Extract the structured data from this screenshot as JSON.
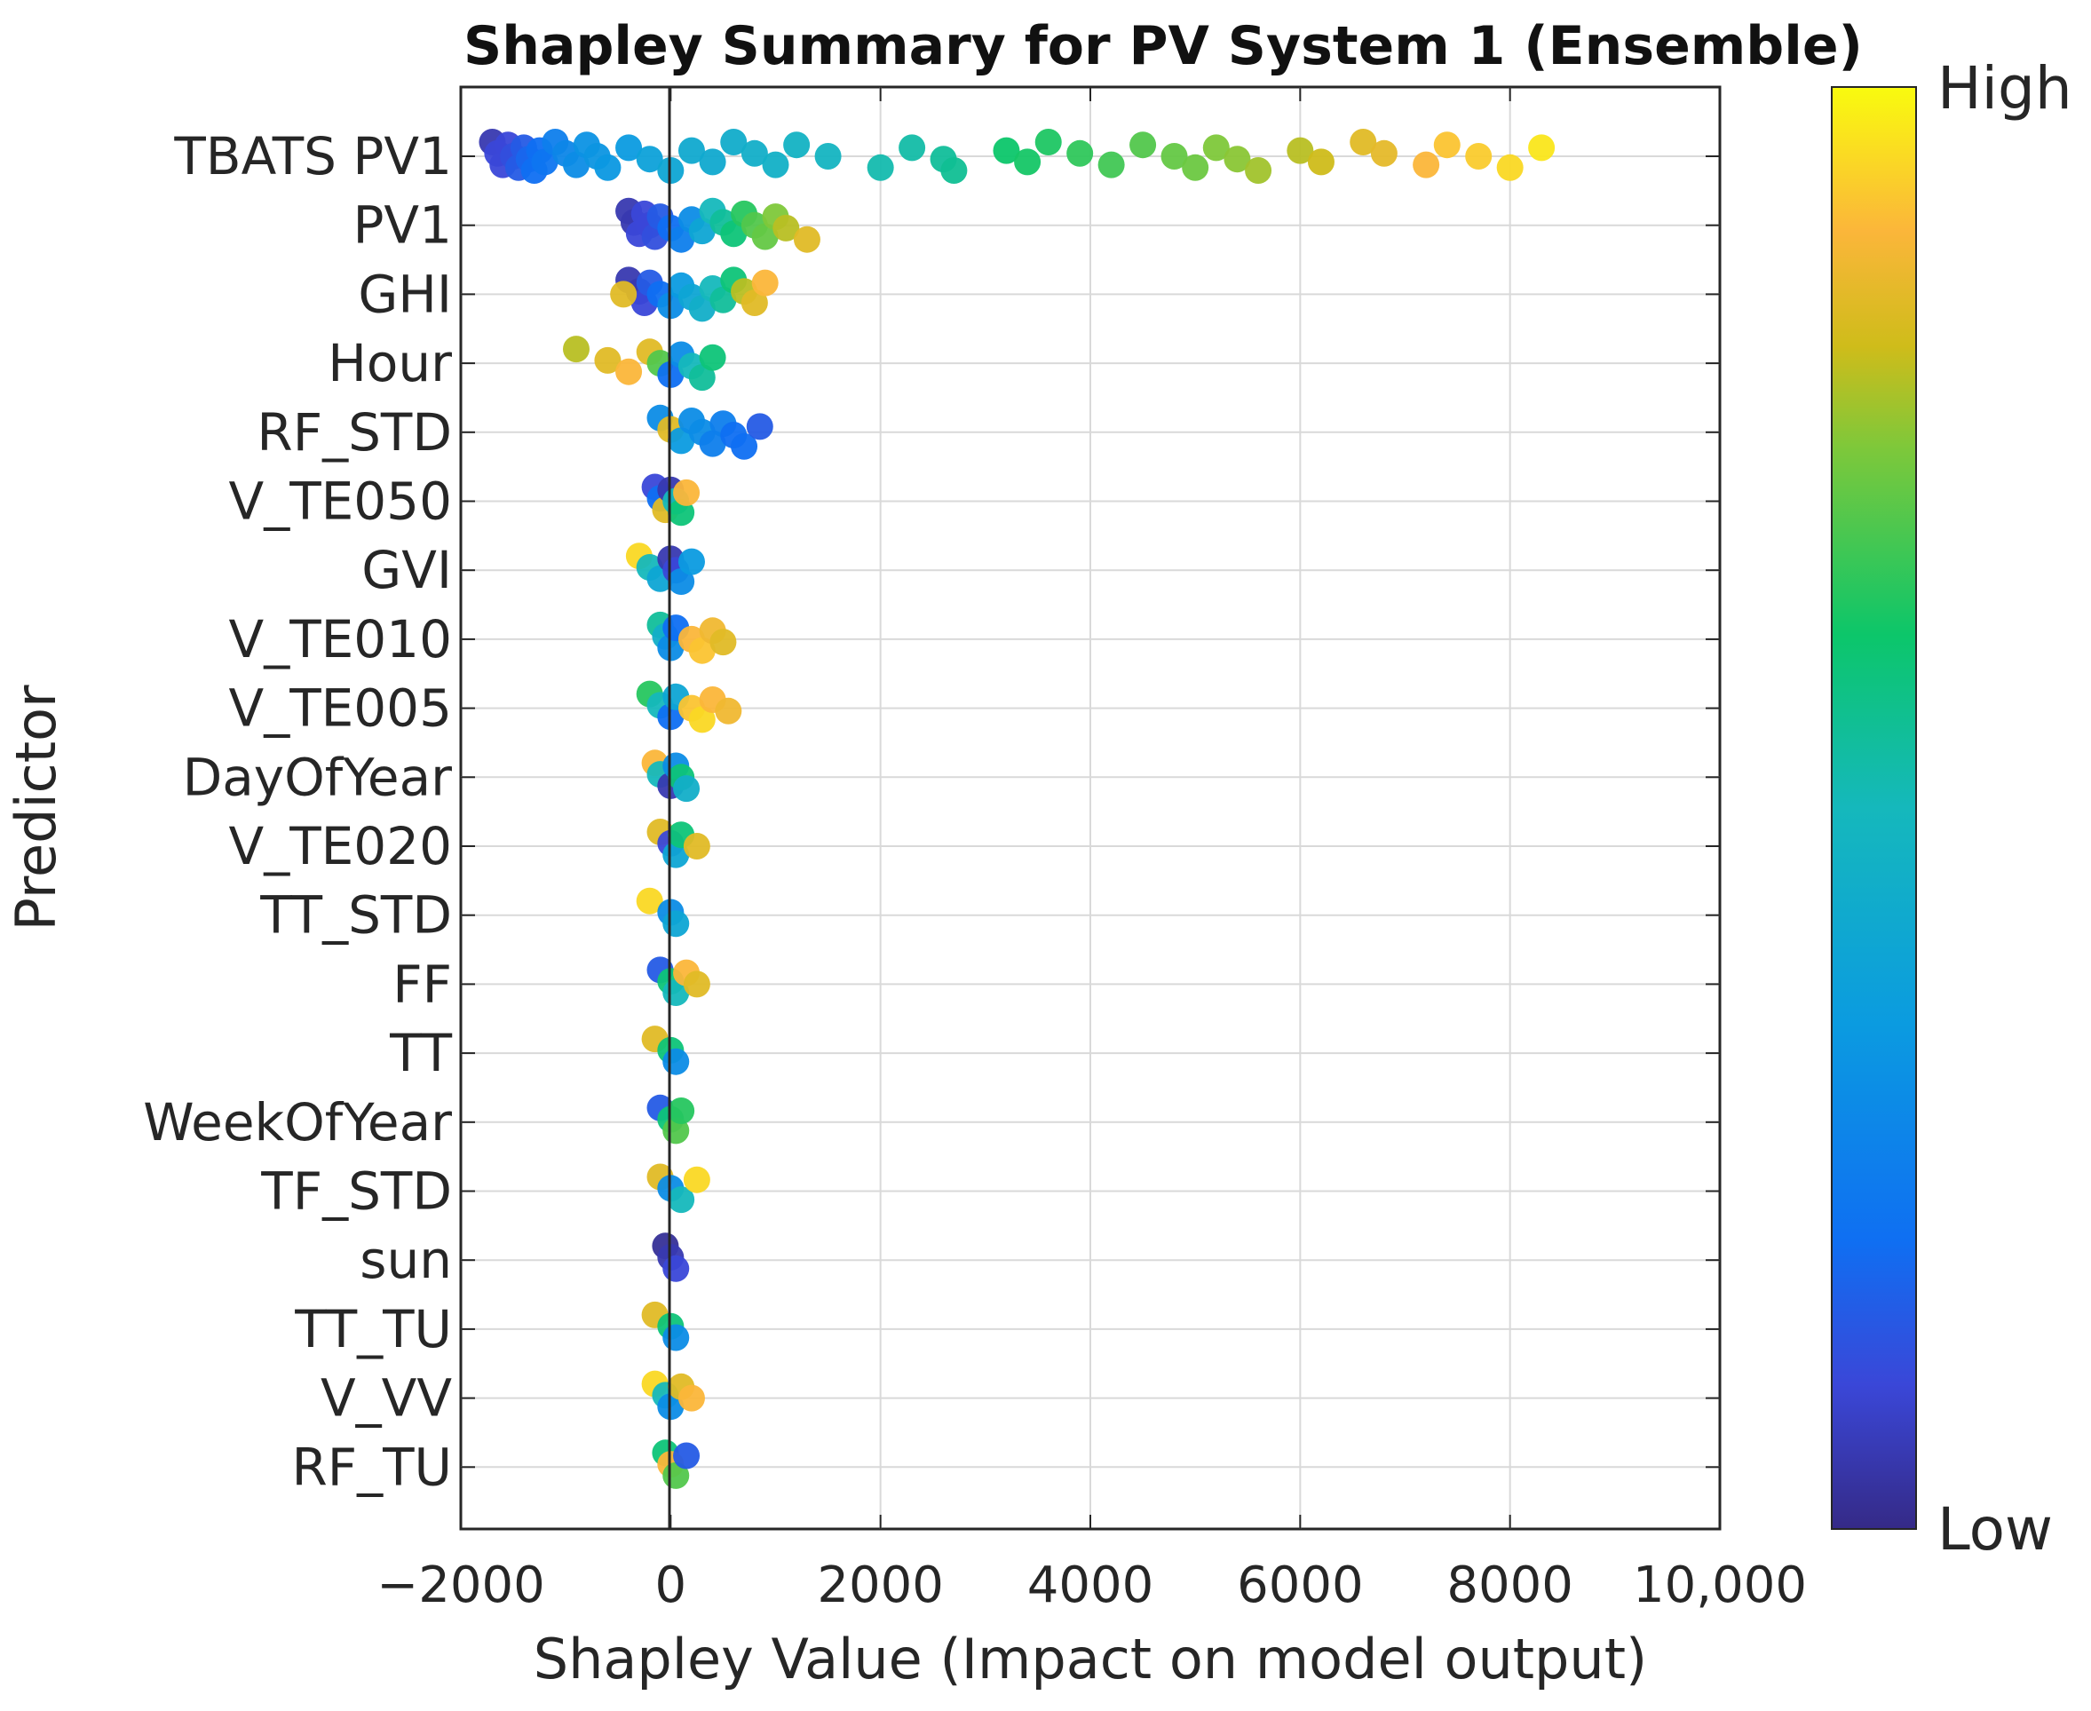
{
  "chart_data": {
    "type": "scatter",
    "subtype": "shapley-beeswarm",
    "title": "Shapley Summary for PV System 1 (Ensemble)",
    "xlabel": "Shapley Value (Impact on model output)",
    "ylabel": "Predictor",
    "xlim": [
      -2000,
      10000
    ],
    "xticks": [
      -2000,
      0,
      2000,
      4000,
      6000,
      8000,
      10000
    ],
    "xtick_labels": [
      "−2000",
      "0",
      "2000",
      "4000",
      "6000",
      "8000",
      "10,000"
    ],
    "grid": true,
    "colorbar": {
      "high_label": "High",
      "low_label": "Low",
      "colormap": "parula"
    },
    "predictors": [
      "TBATS PV1",
      "PV1",
      "GHI",
      "Hour",
      "RF_STD",
      "V_TE050",
      "GVI",
      "V_TE010",
      "V_TE005",
      "DayOfYear",
      "V_TE020",
      "TT_STD",
      "FF",
      "TT",
      "WeekOfYear",
      "TF_STD",
      "sun",
      "TT_TU",
      "V_VV",
      "RF_TU"
    ],
    "points": [
      {
        "predictor": "TBATS PV1",
        "samples": [
          [
            -1700,
            0.05
          ],
          [
            -1650,
            0.1
          ],
          [
            -1600,
            0.1
          ],
          [
            -1550,
            0.1
          ],
          [
            -1500,
            0.12
          ],
          [
            -1450,
            0.15
          ],
          [
            -1400,
            0.15
          ],
          [
            -1350,
            0.18
          ],
          [
            -1300,
            0.2
          ],
          [
            -1250,
            0.2
          ],
          [
            -1200,
            0.22
          ],
          [
            -1100,
            0.25
          ],
          [
            -1000,
            0.28
          ],
          [
            -900,
            0.3
          ],
          [
            -800,
            0.32
          ],
          [
            -700,
            0.33
          ],
          [
            -600,
            0.34
          ],
          [
            -400,
            0.35
          ],
          [
            -200,
            0.38
          ],
          [
            0,
            0.4
          ],
          [
            200,
            0.42
          ],
          [
            400,
            0.42
          ],
          [
            600,
            0.44
          ],
          [
            800,
            0.45
          ],
          [
            1000,
            0.46
          ],
          [
            1200,
            0.47
          ],
          [
            1500,
            0.48
          ],
          [
            2000,
            0.52
          ],
          [
            2300,
            0.53
          ],
          [
            2600,
            0.55
          ],
          [
            2700,
            0.56
          ],
          [
            3200,
            0.62
          ],
          [
            3400,
            0.63
          ],
          [
            3600,
            0.64
          ],
          [
            3900,
            0.66
          ],
          [
            4200,
            0.68
          ],
          [
            4500,
            0.7
          ],
          [
            4800,
            0.72
          ],
          [
            5000,
            0.73
          ],
          [
            5200,
            0.75
          ],
          [
            5400,
            0.76
          ],
          [
            5600,
            0.78
          ],
          [
            6000,
            0.8
          ],
          [
            6200,
            0.82
          ],
          [
            6600,
            0.85
          ],
          [
            6800,
            0.86
          ],
          [
            7200,
            0.9
          ],
          [
            7400,
            0.92
          ],
          [
            7700,
            0.93
          ],
          [
            8000,
            0.95
          ],
          [
            8300,
            0.97
          ]
        ]
      },
      {
        "predictor": "PV1",
        "samples": [
          [
            -400,
            0.05
          ],
          [
            -350,
            0.05
          ],
          [
            -300,
            0.1
          ],
          [
            -250,
            0.1
          ],
          [
            -200,
            0.1
          ],
          [
            -150,
            0.12
          ],
          [
            -100,
            0.15
          ],
          [
            0,
            0.2
          ],
          [
            100,
            0.25
          ],
          [
            200,
            0.3
          ],
          [
            300,
            0.4
          ],
          [
            400,
            0.5
          ],
          [
            500,
            0.55
          ],
          [
            600,
            0.6
          ],
          [
            700,
            0.65
          ],
          [
            800,
            0.7
          ],
          [
            900,
            0.72
          ],
          [
            1000,
            0.75
          ],
          [
            1100,
            0.8
          ],
          [
            1300,
            0.85
          ]
        ]
      },
      {
        "predictor": "GHI",
        "samples": [
          [
            -400,
            0.05
          ],
          [
            -300,
            0.05
          ],
          [
            -250,
            0.1
          ],
          [
            -200,
            0.15
          ],
          [
            -100,
            0.2
          ],
          [
            0,
            0.3
          ],
          [
            100,
            0.35
          ],
          [
            200,
            0.4
          ],
          [
            300,
            0.45
          ],
          [
            400,
            0.5
          ],
          [
            500,
            0.55
          ],
          [
            600,
            0.6
          ],
          [
            700,
            0.8
          ],
          [
            800,
            0.85
          ],
          [
            900,
            0.9
          ],
          [
            -450,
            0.85
          ]
        ]
      },
      {
        "predictor": "Hour",
        "samples": [
          [
            -900,
            0.8
          ],
          [
            -600,
            0.85
          ],
          [
            -400,
            0.9
          ],
          [
            -200,
            0.85
          ],
          [
            -100,
            0.7
          ],
          [
            0,
            0.2
          ],
          [
            100,
            0.3
          ],
          [
            200,
            0.5
          ],
          [
            300,
            0.55
          ],
          [
            400,
            0.6
          ]
        ]
      },
      {
        "predictor": "RF_STD",
        "samples": [
          [
            -100,
            0.3
          ],
          [
            0,
            0.85
          ],
          [
            100,
            0.35
          ],
          [
            200,
            0.3
          ],
          [
            300,
            0.3
          ],
          [
            400,
            0.25
          ],
          [
            500,
            0.25
          ],
          [
            600,
            0.2
          ],
          [
            700,
            0.2
          ],
          [
            850,
            0.15
          ]
        ]
      },
      {
        "predictor": "V_TE050",
        "samples": [
          [
            -150,
            0.1
          ],
          [
            -100,
            0.2
          ],
          [
            -50,
            0.85
          ],
          [
            0,
            0.05
          ],
          [
            50,
            0.5
          ],
          [
            100,
            0.6
          ],
          [
            150,
            0.9
          ]
        ]
      },
      {
        "predictor": "GVI",
        "samples": [
          [
            -300,
            0.95
          ],
          [
            -200,
            0.5
          ],
          [
            -100,
            0.4
          ],
          [
            0,
            0.05
          ],
          [
            50,
            0.1
          ],
          [
            100,
            0.3
          ],
          [
            200,
            0.35
          ]
        ]
      },
      {
        "predictor": "V_TE010",
        "samples": [
          [
            -100,
            0.55
          ],
          [
            -50,
            0.45
          ],
          [
            0,
            0.3
          ],
          [
            50,
            0.2
          ],
          [
            200,
            0.9
          ],
          [
            300,
            0.92
          ],
          [
            400,
            0.88
          ],
          [
            500,
            0.85
          ]
        ]
      },
      {
        "predictor": "V_TE005",
        "samples": [
          [
            -200,
            0.65
          ],
          [
            -100,
            0.5
          ],
          [
            0,
            0.2
          ],
          [
            50,
            0.4
          ],
          [
            200,
            0.92
          ],
          [
            300,
            0.95
          ],
          [
            400,
            0.9
          ],
          [
            550,
            0.88
          ]
        ]
      },
      {
        "predictor": "DayOfYear",
        "samples": [
          [
            -150,
            0.9
          ],
          [
            -100,
            0.5
          ],
          [
            0,
            0.05
          ],
          [
            50,
            0.3
          ],
          [
            100,
            0.6
          ],
          [
            150,
            0.45
          ]
        ]
      },
      {
        "predictor": "V_TE020",
        "samples": [
          [
            -100,
            0.85
          ],
          [
            0,
            0.1
          ],
          [
            50,
            0.4
          ],
          [
            100,
            0.6
          ],
          [
            250,
            0.85
          ]
        ]
      },
      {
        "predictor": "TT_STD",
        "samples": [
          [
            -200,
            0.95
          ],
          [
            0,
            0.3
          ],
          [
            50,
            0.4
          ]
        ]
      },
      {
        "predictor": "FF",
        "samples": [
          [
            -100,
            0.15
          ],
          [
            0,
            0.6
          ],
          [
            50,
            0.5
          ],
          [
            150,
            0.9
          ],
          [
            250,
            0.85
          ]
        ]
      },
      {
        "predictor": "TT",
        "samples": [
          [
            -150,
            0.85
          ],
          [
            0,
            0.6
          ],
          [
            50,
            0.3
          ]
        ]
      },
      {
        "predictor": "WeekOfYear",
        "samples": [
          [
            -100,
            0.15
          ],
          [
            0,
            0.6
          ],
          [
            50,
            0.7
          ],
          [
            100,
            0.65
          ]
        ]
      },
      {
        "predictor": "TF_STD",
        "samples": [
          [
            -100,
            0.85
          ],
          [
            0,
            0.3
          ],
          [
            100,
            0.5
          ],
          [
            250,
            0.95
          ]
        ]
      },
      {
        "predictor": "sun",
        "samples": [
          [
            -50,
            0.02
          ],
          [
            0,
            0.05
          ],
          [
            50,
            0.1
          ]
        ]
      },
      {
        "predictor": "TT_TU",
        "samples": [
          [
            -150,
            0.85
          ],
          [
            0,
            0.6
          ],
          [
            50,
            0.3
          ]
        ]
      },
      {
        "predictor": "V_VV",
        "samples": [
          [
            -150,
            0.95
          ],
          [
            -50,
            0.5
          ],
          [
            0,
            0.3
          ],
          [
            100,
            0.85
          ],
          [
            200,
            0.9
          ]
        ]
      },
      {
        "predictor": "RF_TU",
        "samples": [
          [
            -50,
            0.6
          ],
          [
            0,
            0.9
          ],
          [
            50,
            0.7
          ],
          [
            150,
            0.15
          ]
        ]
      }
    ]
  }
}
